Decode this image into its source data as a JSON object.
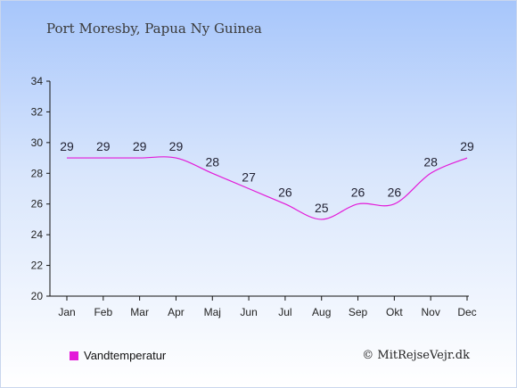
{
  "header": {
    "title": "Port Moresby, Papua Ny Guinea"
  },
  "footer": {
    "copyright": "© MitRejseVejr.dk"
  },
  "colors": {
    "line": "#e31ad8",
    "axis": "#111111"
  },
  "chart_data": {
    "type": "line",
    "categories": [
      "Jan",
      "Feb",
      "Mar",
      "Apr",
      "Maj",
      "Jun",
      "Jul",
      "Aug",
      "Sep",
      "Okt",
      "Nov",
      "Dec"
    ],
    "series": [
      {
        "name": "Vandtemperatur",
        "values": [
          29,
          29,
          29,
          29,
          28,
          27,
          26,
          25,
          26,
          26,
          28,
          29
        ]
      }
    ],
    "ylim": [
      20,
      34
    ],
    "yticks": [
      20,
      22,
      24,
      26,
      28,
      30,
      32,
      34
    ],
    "grid": false,
    "legend": "bottom-left"
  }
}
